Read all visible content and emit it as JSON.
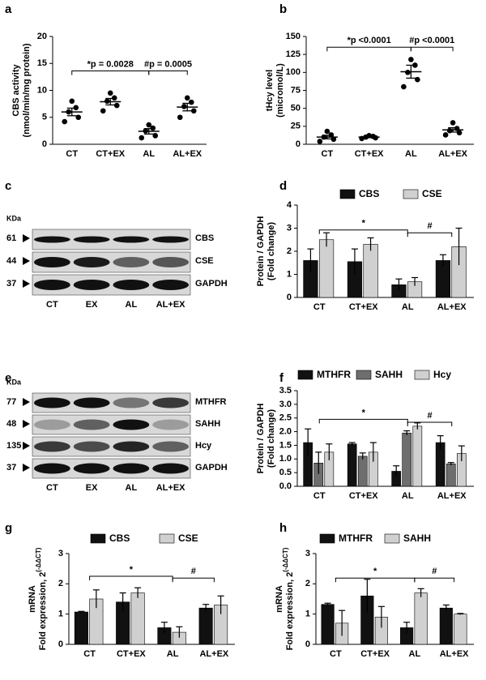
{
  "chart_data": [
    {
      "type": "dot",
      "label": "a",
      "ylabel": [
        "CBS activity",
        "(nmol/min/mg protein)"
      ],
      "categories": [
        "CT",
        "CT+EX",
        "AL",
        "AL+EX"
      ],
      "points": [
        [
          4.2,
          5.0,
          6.0,
          6.8,
          8.0
        ],
        [
          6.2,
          7.2,
          8.0,
          8.6,
          9.5
        ],
        [
          1.2,
          1.6,
          2.5,
          3.0,
          3.6
        ],
        [
          5.0,
          6.2,
          7.0,
          7.8,
          8.6
        ]
      ],
      "mean": [
        6.0,
        7.9,
        2.4,
        6.9
      ],
      "sem": [
        0.7,
        0.6,
        0.5,
        0.7
      ],
      "color": "#000000",
      "ylim": [
        0,
        20
      ],
      "yticks": [
        0,
        5,
        10,
        15,
        20
      ],
      "annotations": [
        "*p = 0.0028",
        "#p = 0.0005"
      ]
    },
    {
      "type": "dot",
      "label": "b",
      "ylabel": [
        "tHcy level",
        "(micromol/L)"
      ],
      "categories": [
        "CT",
        "CT+EX",
        "AL",
        "AL+EX"
      ],
      "points": [
        [
          4,
          7,
          10,
          13,
          18
        ],
        [
          8,
          9,
          10,
          11,
          12
        ],
        [
          80,
          90,
          100,
          110,
          118
        ],
        [
          13,
          16,
          19,
          22,
          30
        ]
      ],
      "mean": [
        10,
        10,
        101,
        20
      ],
      "sem": [
        2.5,
        0.8,
        9,
        3
      ],
      "color": "#000000",
      "ylim": [
        0,
        150
      ],
      "yticks": [
        0,
        25,
        50,
        75,
        100,
        125,
        150
      ],
      "annotations": [
        "*p <0.0001",
        "#p <0.0001"
      ]
    },
    {
      "type": "bar",
      "label": "d",
      "ylabel": [
        "Protein / GAPDH",
        "(Fold change)"
      ],
      "categories": [
        "CT",
        "CT+EX",
        "AL",
        "AL+EX"
      ],
      "series": [
        {
          "name": "CBS",
          "color": "#111111",
          "values": [
            1.6,
            1.55,
            0.55,
            1.6
          ],
          "errors": [
            0.5,
            0.55,
            0.25,
            0.25
          ]
        },
        {
          "name": "CSE",
          "color": "#d0d0d0",
          "values": [
            2.5,
            2.3,
            0.68,
            2.2
          ],
          "errors": [
            0.3,
            0.28,
            0.18,
            0.8
          ]
        }
      ],
      "ylim": [
        0,
        4
      ],
      "yticks": [
        0,
        1,
        2,
        3,
        4
      ],
      "annotations": [
        "*",
        "#"
      ]
    },
    {
      "type": "bar",
      "label": "f",
      "ylabel": [
        "Protein / GAPDH",
        "(Fold change)"
      ],
      "categories": [
        "CT",
        "CT+EX",
        "AL",
        "AL+EX"
      ],
      "series": [
        {
          "name": "MTHFR",
          "color": "#111111",
          "values": [
            1.6,
            1.55,
            0.55,
            1.6
          ],
          "errors": [
            0.5,
            0.05,
            0.2,
            0.25
          ]
        },
        {
          "name": "SAHH",
          "color": "#6e6e6e",
          "values": [
            0.85,
            1.1,
            1.95,
            0.82
          ],
          "errors": [
            0.4,
            0.12,
            0.08,
            0.05
          ]
        },
        {
          "name": "Hcy",
          "color": "#d0d0d0",
          "values": [
            1.25,
            1.25,
            2.2,
            1.2
          ],
          "errors": [
            0.3,
            0.35,
            0.12,
            0.28
          ]
        }
      ],
      "ylim": [
        0,
        3.5
      ],
      "yticks": [
        {
          "value": 0,
          "label": "0.0"
        },
        0.5,
        {
          "value": 1,
          "label": "1.0"
        },
        1.5,
        {
          "value": 2,
          "label": "2.0"
        },
        2.5,
        {
          "value": 3,
          "label": "3.0"
        },
        3.5
      ],
      "annotations": [
        "*",
        "#"
      ]
    },
    {
      "type": "bar",
      "label": "g",
      "ylabel": [
        "mRNA",
        "Fold expression, 2"
      ],
      "ylabel_sup": "(-ΔΔCT)",
      "categories": [
        "CT",
        "CT+EX",
        "AL",
        "AL+EX"
      ],
      "series": [
        {
          "name": "CBS",
          "color": "#111111",
          "values": [
            1.07,
            1.4,
            0.55,
            1.2
          ],
          "errors": [
            0.02,
            0.3,
            0.18,
            0.12
          ]
        },
        {
          "name": "CSE",
          "color": "#d0d0d0",
          "values": [
            1.5,
            1.7,
            0.4,
            1.3
          ],
          "errors": [
            0.3,
            0.17,
            0.18,
            0.3
          ]
        }
      ],
      "ylim": [
        0,
        3
      ],
      "yticks": [
        0,
        1,
        2,
        3
      ],
      "annotations": [
        "*",
        "#"
      ]
    },
    {
      "type": "bar",
      "label": "h",
      "ylabel": [
        "mRNA",
        "Fold expression, 2"
      ],
      "ylabel_sup": "(-ΔΔCT)",
      "categories": [
        "CT",
        "CT+EX",
        "AL",
        "AL+EX"
      ],
      "series": [
        {
          "name": "MTHFR",
          "color": "#111111",
          "values": [
            1.32,
            1.6,
            0.55,
            1.2
          ],
          "errors": [
            0.04,
            0.55,
            0.18,
            0.1
          ]
        },
        {
          "name": "SAHH",
          "color": "#d0d0d0",
          "values": [
            0.7,
            0.9,
            1.7,
            1.0
          ],
          "errors": [
            0.42,
            0.35,
            0.14,
            0.02
          ]
        }
      ],
      "ylim": [
        0,
        3
      ],
      "yticks": [
        0,
        1,
        2,
        3
      ],
      "annotations": [
        "*",
        "#"
      ]
    }
  ],
  "blots": [
    {
      "label": "c",
      "unit": "KDa",
      "lanes": [
        "CT",
        "EX",
        "AL",
        "AL+EX"
      ],
      "rows": [
        {
          "kda": "61",
          "protein": "CBS"
        },
        {
          "kda": "44",
          "protein": "CSE"
        },
        {
          "kda": "37",
          "protein": "GAPDH"
        }
      ]
    },
    {
      "label": "e",
      "unit": "KDa",
      "lanes": [
        "CT",
        "EX",
        "AL",
        "AL+EX"
      ],
      "rows": [
        {
          "kda": "77",
          "protein": "MTHFR"
        },
        {
          "kda": "48",
          "protein": "SAHH"
        },
        {
          "kda": "135",
          "protein": "Hcy"
        },
        {
          "kda": "37",
          "protein": "GAPDH"
        }
      ]
    }
  ]
}
